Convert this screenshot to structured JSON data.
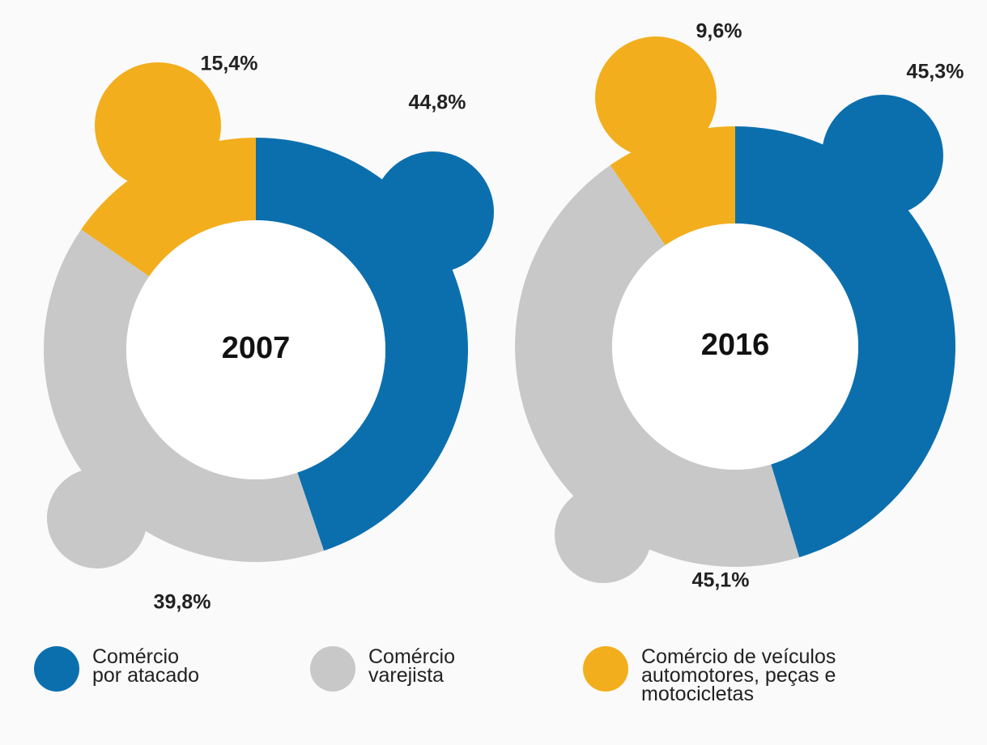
{
  "chart_data": {
    "type": "donut",
    "categories": [
      "Comércio por atacado",
      "Comércio varejista",
      "Comércio de veículos automotores, peças e motocicletas"
    ],
    "colors": [
      "#0b6fae",
      "#c8c8c8",
      "#f2ae1c"
    ],
    "series": [
      {
        "name": "2007",
        "values": [
          44.8,
          39.8,
          15.4
        ],
        "value_labels": [
          "44,8%",
          "39,8%",
          "15,4%"
        ]
      },
      {
        "name": "2016",
        "values": [
          45.3,
          45.1,
          9.6
        ],
        "value_labels": [
          "45,3%",
          "45,1%",
          "9,6%"
        ]
      }
    ]
  }
}
